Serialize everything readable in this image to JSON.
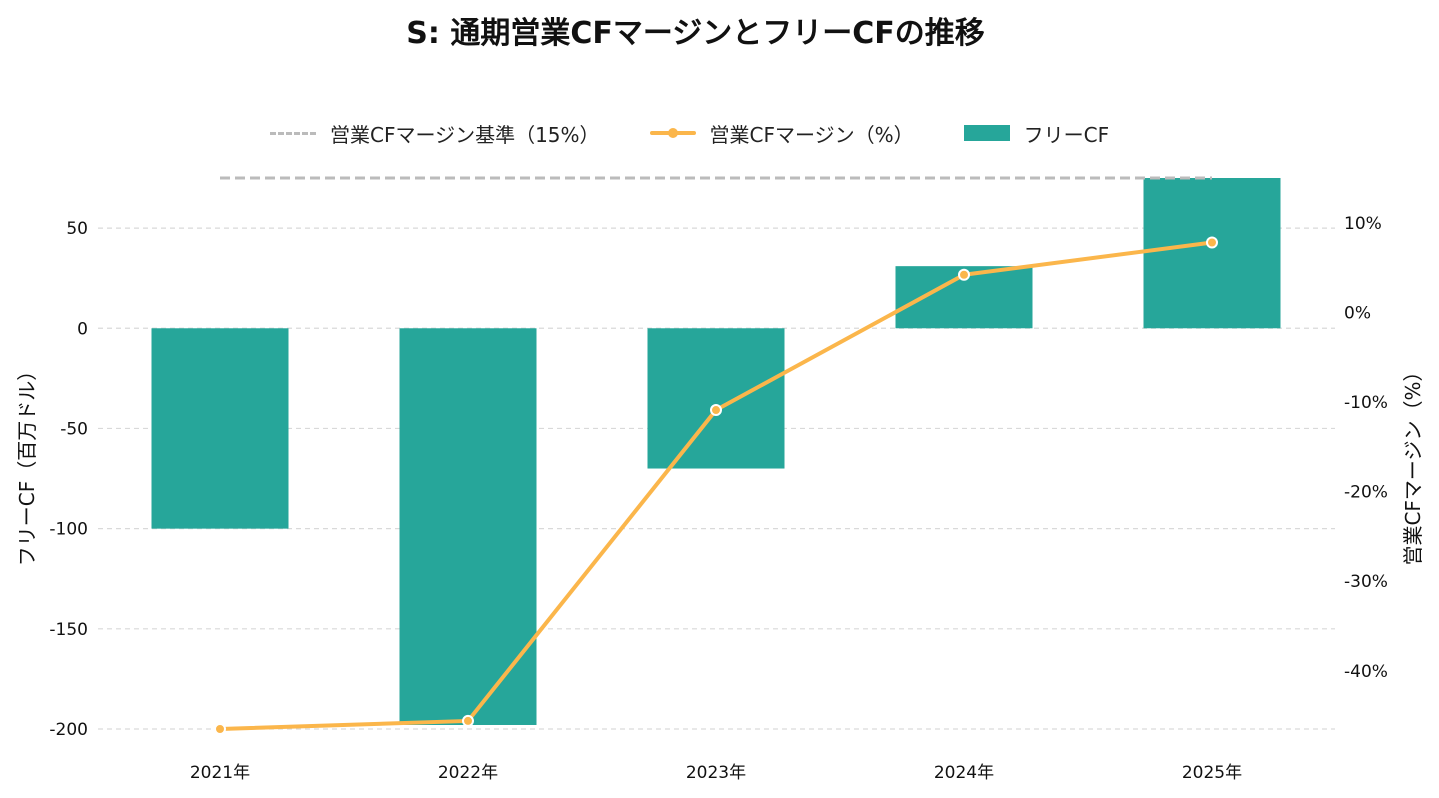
{
  "chart_data": {
    "type": "bar",
    "title": "S: 通期営業CFマージンとフリーCFの推移",
    "categories": [
      "2021年",
      "2022年",
      "2023年",
      "2024年",
      "2025年"
    ],
    "series": [
      {
        "name": "フリーCF",
        "type": "bar",
        "axis": "left",
        "color": "#26a69a",
        "values": [
          -100,
          -198,
          -70,
          31,
          75
        ]
      },
      {
        "name": "営業CFマージン（%）",
        "type": "line",
        "axis": "right",
        "color": "#fbb64b",
        "values": [
          -46.5,
          -45.6,
          -10.9,
          4.2,
          7.8
        ]
      }
    ],
    "reference_line": {
      "name": "営業CFマージン基準（15%）",
      "value": 15,
      "axis": "right",
      "style": "dashed",
      "color": "#bbbbbb"
    },
    "left_axis": {
      "label": "フリーCF（百万ドル）",
      "ylim": [
        -200,
        75
      ],
      "ticks": [
        50,
        0,
        -50,
        -100,
        -150,
        -200
      ],
      "tick_labels": [
        "50",
        "0",
        "-50",
        "-100",
        "-150",
        "-200"
      ]
    },
    "right_axis": {
      "label": "営業CFマージン（%）",
      "ylim": [
        -46.5,
        15
      ],
      "ticks": [
        10,
        0,
        -10,
        -20,
        -30,
        -40
      ],
      "tick_labels": [
        "10%",
        "0%",
        "-10%",
        "-20%",
        "-30%",
        "-40%"
      ]
    },
    "grid": true,
    "legend_position": "top-center"
  }
}
